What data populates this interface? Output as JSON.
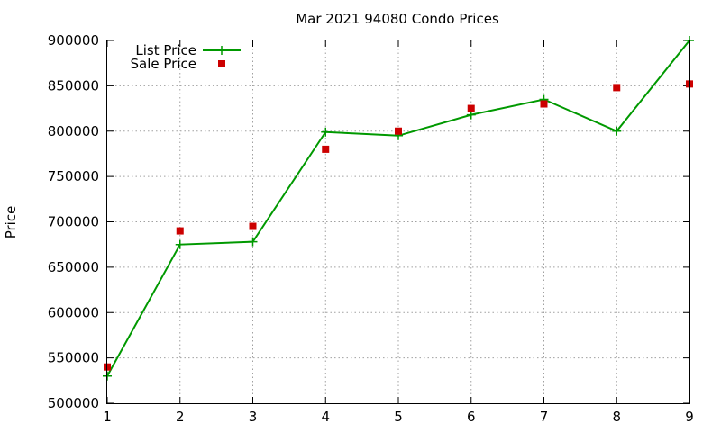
{
  "chart_data": {
    "type": "line",
    "title": "Mar 2021 94080 Condo Prices",
    "xlabel": "",
    "ylabel": "Price",
    "xlim": [
      1,
      9
    ],
    "ylim": [
      500000,
      900000
    ],
    "x_ticks": [
      "1",
      "2",
      "3",
      "4",
      "5",
      "6",
      "7",
      "8",
      "9"
    ],
    "y_ticks": [
      "500000",
      "550000",
      "600000",
      "650000",
      "700000",
      "750000",
      "800000",
      "850000",
      "900000"
    ],
    "grid": true,
    "legend_position": "top-left",
    "series": [
      {
        "name": "List Price",
        "style": "line-points",
        "marker": "plus",
        "color": "#009900",
        "x": [
          1,
          2,
          3,
          4,
          5,
          6,
          7,
          8,
          9
        ],
        "values": [
          530000,
          675000,
          678000,
          799000,
          795000,
          818000,
          835000,
          800000,
          900000
        ]
      },
      {
        "name": "Sale Price",
        "style": "points",
        "marker": "square",
        "color": "#cc0000",
        "x": [
          1,
          2,
          3,
          4,
          5,
          6,
          7,
          8,
          9
        ],
        "values": [
          540000,
          690000,
          695000,
          780000,
          800000,
          825000,
          830000,
          848000,
          852000
        ]
      }
    ]
  }
}
